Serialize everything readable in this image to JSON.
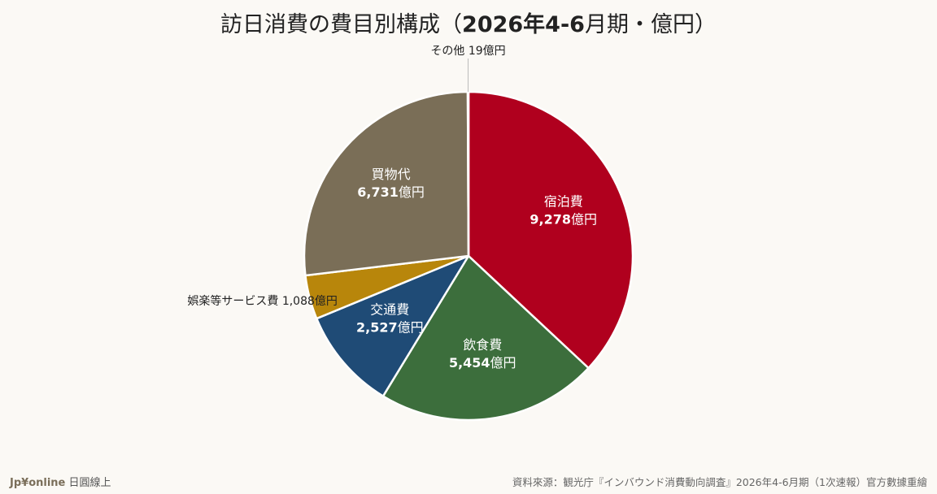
{
  "chart_data": {
    "type": "pie",
    "title_prefix": "訪日消費の費目別構成（",
    "title_bold": "2026年4-6",
    "title_suffix": "月期・億円）",
    "unit": "億円",
    "slices": [
      {
        "label": "宿泊費",
        "value": 9278,
        "value_text": "9,278",
        "color": "#b0001e",
        "label_position": "inside"
      },
      {
        "label": "飲食費",
        "value": 5454,
        "value_text": "5,454",
        "color": "#3c6e3c",
        "label_position": "inside"
      },
      {
        "label": "交通費",
        "value": 2527,
        "value_text": "2,527",
        "color": "#1f4b76",
        "label_position": "inside"
      },
      {
        "label": "娯楽等サービス費",
        "value": 1088,
        "value_text": "1,088",
        "color": "#b8860b",
        "label_position": "outside"
      },
      {
        "label": "買物代",
        "value": 6731,
        "value_text": "6,731",
        "color": "#7a6e57",
        "label_position": "inside"
      },
      {
        "label": "その他",
        "value": 19,
        "value_text": "19",
        "color": "#9a9a9a",
        "label_position": "outside"
      }
    ]
  },
  "footer": {
    "brand": "Jp¥online",
    "tagline": "日圓線上",
    "source": "資料來源：観光庁『インバウンド消費動向調査』2026年4-6月期（1次速報）官方數據重繪"
  }
}
